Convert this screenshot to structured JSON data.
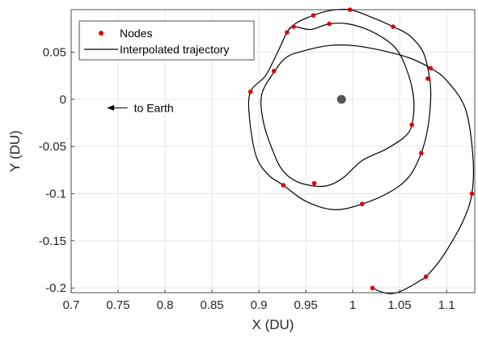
{
  "chart_data": {
    "type": "line",
    "xlabel": "X (DU)",
    "ylabel": "Y (DU)",
    "xlim": [
      0.7,
      1.13
    ],
    "ylim": [
      -0.205,
      0.095
    ],
    "xticks": [
      0.7,
      0.75,
      0.8,
      0.85,
      0.9,
      0.95,
      1,
      1.05,
      1.1
    ],
    "xtick_labels": [
      "0.7",
      "0.75",
      "0.8",
      "0.85",
      "0.9",
      "0.95",
      "1",
      "1.05",
      "1.1"
    ],
    "yticks": [
      0.05,
      0,
      -0.05,
      -0.1,
      -0.15,
      -0.2
    ],
    "ytick_labels": [
      "0.05",
      "0",
      "-0.05",
      "-0.1",
      "-0.15",
      "-0.2"
    ],
    "grid": true,
    "legend": {
      "placement": "top-left",
      "entries": [
        {
          "label": "Nodes",
          "marker": "dot",
          "color": "#e00000"
        },
        {
          "label": "Interpolated trajectory",
          "marker": "line",
          "color": "#000000"
        }
      ]
    },
    "annotation": {
      "text": "to Earth",
      "arrow_direction": "left",
      "x_start": 0.76,
      "x_end": 0.738,
      "y": -0.009
    },
    "body": {
      "x": 0.988,
      "y": 0.0,
      "color": "#555555"
    },
    "trajectory": {
      "name": "Interpolated trajectory",
      "color": "#000000",
      "points": [
        [
          1.021,
          -0.2
        ],
        [
          1.03,
          -0.204
        ],
        [
          1.04,
          -0.206
        ],
        [
          1.05,
          -0.204
        ],
        [
          1.062,
          -0.198
        ],
        [
          1.072,
          -0.192
        ],
        [
          1.078,
          -0.188
        ],
        [
          1.092,
          -0.172
        ],
        [
          1.105,
          -0.152
        ],
        [
          1.118,
          -0.128
        ],
        [
          1.127,
          -0.1
        ],
        [
          1.128,
          -0.06
        ],
        [
          1.12,
          -0.01
        ],
        [
          1.1,
          0.02
        ],
        [
          1.083,
          0.033
        ],
        [
          1.06,
          0.044
        ],
        [
          1.03,
          0.052
        ],
        [
          1.0,
          0.057
        ],
        [
          0.975,
          0.057
        ],
        [
          0.95,
          0.052
        ],
        [
          0.93,
          0.045
        ],
        [
          0.917,
          0.03
        ],
        [
          0.903,
          0.005
        ],
        [
          0.905,
          -0.025
        ],
        [
          0.915,
          -0.055
        ],
        [
          0.925,
          -0.075
        ],
        [
          0.94,
          -0.087
        ],
        [
          0.96,
          -0.092
        ],
        [
          0.975,
          -0.091
        ],
        [
          0.99,
          -0.083
        ],
        [
          1.01,
          -0.065
        ],
        [
          1.035,
          -0.053
        ],
        [
          1.055,
          -0.04
        ],
        [
          1.063,
          -0.027
        ],
        [
          1.065,
          0.0
        ],
        [
          1.058,
          0.03
        ],
        [
          1.045,
          0.055
        ],
        [
          1.02,
          0.072
        ],
        [
          0.995,
          0.08
        ],
        [
          0.975,
          0.08
        ],
        [
          0.955,
          0.074
        ],
        [
          0.937,
          0.077
        ],
        [
          0.93,
          0.071
        ],
        [
          0.92,
          0.05
        ],
        [
          0.907,
          0.025
        ],
        [
          0.891,
          0.008
        ],
        [
          0.89,
          -0.02
        ],
        [
          0.897,
          -0.06
        ],
        [
          0.91,
          -0.08
        ],
        [
          0.926,
          -0.091
        ],
        [
          0.95,
          -0.108
        ],
        [
          0.98,
          -0.117
        ],
        [
          1.01,
          -0.111
        ],
        [
          1.04,
          -0.098
        ],
        [
          1.06,
          -0.082
        ],
        [
          1.073,
          -0.057
        ],
        [
          1.08,
          -0.03
        ],
        [
          1.083,
          0.0
        ],
        [
          1.082,
          0.022
        ],
        [
          1.075,
          0.05
        ],
        [
          1.06,
          0.068
        ],
        [
          1.043,
          0.077
        ],
        [
          1.02,
          0.087
        ],
        [
          0.997,
          0.095
        ],
        [
          0.975,
          0.094
        ],
        [
          0.958,
          0.089
        ],
        [
          0.94,
          0.081
        ],
        [
          0.93,
          0.072
        ]
      ]
    },
    "nodes": {
      "name": "Nodes",
      "color": "#e00000",
      "points": [
        [
          1.021,
          -0.2
        ],
        [
          1.078,
          -0.188
        ],
        [
          1.127,
          -0.1
        ],
        [
          1.083,
          0.033
        ],
        [
          1.08,
          0.022
        ],
        [
          1.043,
          0.077
        ],
        [
          0.997,
          0.095
        ],
        [
          0.958,
          0.089
        ],
        [
          0.937,
          0.077
        ],
        [
          0.93,
          0.071
        ],
        [
          0.975,
          0.08
        ],
        [
          0.916,
          0.03
        ],
        [
          0.891,
          0.008
        ],
        [
          0.926,
          -0.091
        ],
        [
          0.959,
          -0.089
        ],
        [
          1.01,
          -0.111
        ],
        [
          1.073,
          -0.057
        ],
        [
          1.063,
          -0.027
        ]
      ]
    }
  }
}
